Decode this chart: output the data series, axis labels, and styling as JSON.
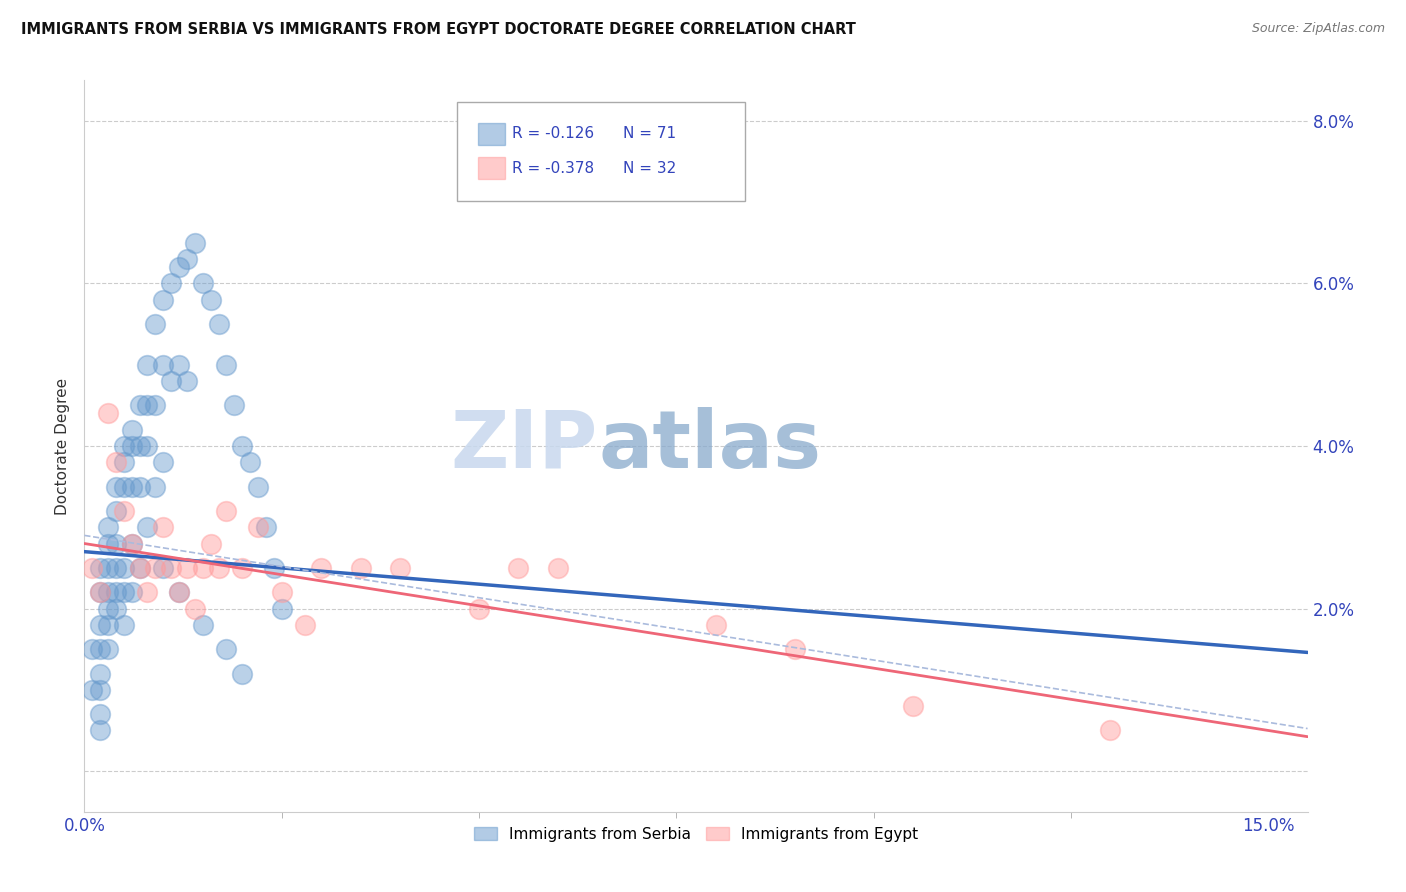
{
  "title": "IMMIGRANTS FROM SERBIA VS IMMIGRANTS FROM EGYPT DOCTORATE DEGREE CORRELATION CHART",
  "source": "Source: ZipAtlas.com",
  "ylabel": "Doctorate Degree",
  "right_yticks": [
    0.0,
    0.02,
    0.04,
    0.06,
    0.08
  ],
  "right_yticklabels": [
    "",
    "2.0%",
    "4.0%",
    "6.0%",
    "8.0%"
  ],
  "xlim": [
    0.0,
    0.155
  ],
  "ylim": [
    -0.005,
    0.085
  ],
  "serbia_color": "#6699CC",
  "egypt_color": "#FF9999",
  "serbia_line_color": "#3366BB",
  "egypt_line_color": "#EE6677",
  "serbia_R": -0.126,
  "serbia_N": 71,
  "egypt_R": -0.378,
  "egypt_N": 32,
  "serbia_label": "Immigrants from Serbia",
  "egypt_label": "Immigrants from Egypt",
  "watermark_zip": "ZIP",
  "watermark_atlas": "atlas",
  "serbia_scatter_x": [
    0.001,
    0.001,
    0.002,
    0.002,
    0.002,
    0.002,
    0.002,
    0.002,
    0.002,
    0.002,
    0.003,
    0.003,
    0.003,
    0.003,
    0.003,
    0.003,
    0.003,
    0.004,
    0.004,
    0.004,
    0.004,
    0.004,
    0.004,
    0.005,
    0.005,
    0.005,
    0.005,
    0.005,
    0.005,
    0.006,
    0.006,
    0.006,
    0.006,
    0.006,
    0.007,
    0.007,
    0.007,
    0.007,
    0.008,
    0.008,
    0.008,
    0.008,
    0.009,
    0.009,
    0.009,
    0.01,
    0.01,
    0.01,
    0.011,
    0.011,
    0.012,
    0.012,
    0.013,
    0.013,
    0.014,
    0.015,
    0.016,
    0.017,
    0.018,
    0.019,
    0.02,
    0.021,
    0.022,
    0.023,
    0.024,
    0.025,
    0.01,
    0.012,
    0.015,
    0.018,
    0.02
  ],
  "serbia_scatter_y": [
    0.015,
    0.01,
    0.025,
    0.022,
    0.018,
    0.015,
    0.012,
    0.01,
    0.007,
    0.005,
    0.03,
    0.028,
    0.025,
    0.022,
    0.02,
    0.018,
    0.015,
    0.035,
    0.032,
    0.028,
    0.025,
    0.022,
    0.02,
    0.04,
    0.038,
    0.035,
    0.025,
    0.022,
    0.018,
    0.042,
    0.04,
    0.035,
    0.028,
    0.022,
    0.045,
    0.04,
    0.035,
    0.025,
    0.05,
    0.045,
    0.04,
    0.03,
    0.055,
    0.045,
    0.035,
    0.058,
    0.05,
    0.038,
    0.06,
    0.048,
    0.062,
    0.05,
    0.063,
    0.048,
    0.065,
    0.06,
    0.058,
    0.055,
    0.05,
    0.045,
    0.04,
    0.038,
    0.035,
    0.03,
    0.025,
    0.02,
    0.025,
    0.022,
    0.018,
    0.015,
    0.012
  ],
  "egypt_scatter_x": [
    0.001,
    0.002,
    0.003,
    0.004,
    0.005,
    0.006,
    0.007,
    0.008,
    0.009,
    0.01,
    0.011,
    0.012,
    0.013,
    0.014,
    0.015,
    0.016,
    0.017,
    0.018,
    0.02,
    0.022,
    0.025,
    0.028,
    0.03,
    0.035,
    0.04,
    0.05,
    0.055,
    0.06,
    0.08,
    0.09,
    0.105,
    0.13
  ],
  "egypt_scatter_y": [
    0.025,
    0.022,
    0.044,
    0.038,
    0.032,
    0.028,
    0.025,
    0.022,
    0.025,
    0.03,
    0.025,
    0.022,
    0.025,
    0.02,
    0.025,
    0.028,
    0.025,
    0.032,
    0.025,
    0.03,
    0.022,
    0.018,
    0.025,
    0.025,
    0.025,
    0.02,
    0.025,
    0.025,
    0.018,
    0.015,
    0.008,
    0.005
  ]
}
